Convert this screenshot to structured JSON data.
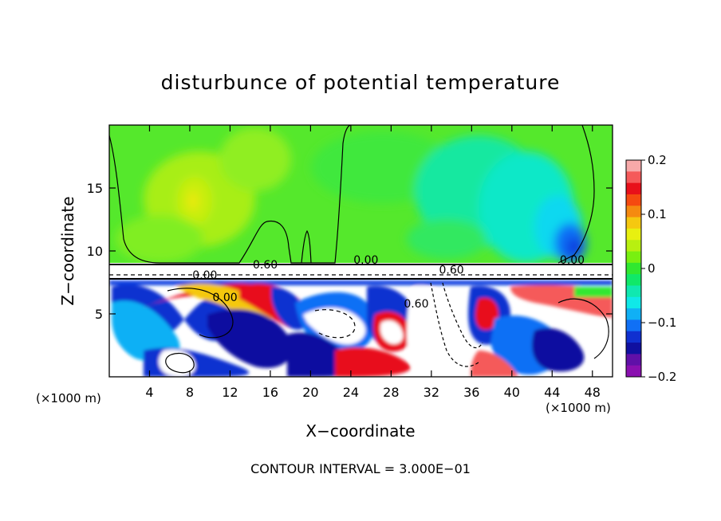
{
  "chart_data": {
    "type": "heatmap",
    "title": "disturbunce of potential temperature",
    "xlabel": "X−coordinate",
    "ylabel": "Z−coordinate",
    "x_unit_left": "(×1000 m)",
    "x_unit_right": "(×1000 m)",
    "footer": "CONTOUR INTERVAL = 3.000E−01",
    "xlim": [
      0,
      50
    ],
    "ylim": [
      0,
      20
    ],
    "x_ticks": [
      4,
      8,
      12,
      16,
      20,
      24,
      28,
      32,
      36,
      40,
      44,
      48
    ],
    "y_ticks": [
      5,
      10,
      15
    ],
    "colorbar": {
      "min": -0.2,
      "max": 0.2,
      "tick_labels": [
        "0.2",
        "0.1",
        "0",
        "−0.1",
        "−0.2"
      ],
      "tick_values": [
        0.2,
        0.1,
        0,
        -0.1,
        -0.2
      ],
      "colors": [
        "#f7a9a9",
        "#f55a5a",
        "#e8101a",
        "#f54a10",
        "#f58a10",
        "#f5c810",
        "#e8f010",
        "#b8f010",
        "#78f010",
        "#30e830",
        "#10e868",
        "#10e8b0",
        "#10e8e8",
        "#10b0f5",
        "#1070f5",
        "#1030d0",
        "#1010a0",
        "#6010a8",
        "#8a10b0"
      ]
    },
    "contour_labels": [
      {
        "text": "0.60",
        "x": 15.5,
        "z": 8.6
      },
      {
        "text": "0.00",
        "x": 25.5,
        "z": 9.0
      },
      {
        "text": "0.60",
        "x": 34.0,
        "z": 8.2
      },
      {
        "text": "0.00",
        "x": 9.5,
        "z": 7.8
      },
      {
        "text": "0.00",
        "x": 11.5,
        "z": 6.0
      },
      {
        "text": "0.00",
        "x": 46.0,
        "z": 9.0
      },
      {
        "text": "0.60",
        "x": 30.5,
        "z": 5.5
      }
    ],
    "regions": {
      "upper_layer": {
        "z_range": [
          9,
          20
        ],
        "value_range": [
          -0.1,
          0.1
        ]
      },
      "interface_layer": {
        "z_range": [
          7.5,
          9
        ],
        "note": "dense contours"
      },
      "lower_layer": {
        "z_range": [
          0,
          7.5
        ],
        "value_range": [
          -0.2,
          0.2
        ]
      }
    }
  }
}
